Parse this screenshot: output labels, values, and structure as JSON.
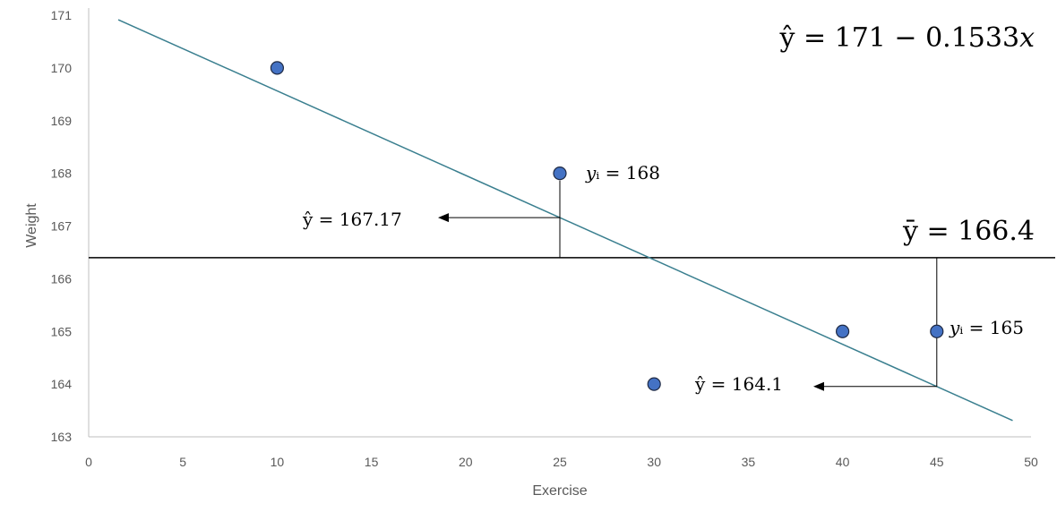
{
  "chart_data": {
    "type": "scatter",
    "title": "",
    "xlabel": "Exercise",
    "ylabel": "Weight",
    "xlim": [
      0,
      50
    ],
    "ylim": [
      163,
      171
    ],
    "x_ticks": [
      "0",
      "5",
      "10",
      "15",
      "20",
      "25",
      "30",
      "35",
      "40",
      "45",
      "50"
    ],
    "y_ticks": [
      "163",
      "164",
      "165",
      "166",
      "167",
      "168",
      "169",
      "170",
      "171"
    ],
    "grid": false,
    "points": [
      {
        "x": 10,
        "y": 170
      },
      {
        "x": 25,
        "y": 168
      },
      {
        "x": 30,
        "y": 164
      },
      {
        "x": 40,
        "y": 165
      },
      {
        "x": 45,
        "y": 165
      }
    ],
    "regression_line": {
      "x_start": 1,
      "x_end": 49.5,
      "intercept": 171,
      "slope": -0.1533
    },
    "mean_line": {
      "y": 166.4
    },
    "annotations": {
      "equation": "ŷ = 171 − 0.1533𝑥",
      "mean_label": "ȳ = 166.4",
      "yi_168": "𝑦ᵢ = 168",
      "yhat_167": "ŷ = 167.17",
      "yi_165": "𝑦ᵢ = 165",
      "yhat_164": "ŷ = 164.1"
    },
    "colors": {
      "point_fill": "#4472c4",
      "point_stroke": "#1f2a44",
      "regression_line": "#3a7f8f",
      "mean_line": "#000000",
      "axis": "#bfbfbf"
    }
  }
}
